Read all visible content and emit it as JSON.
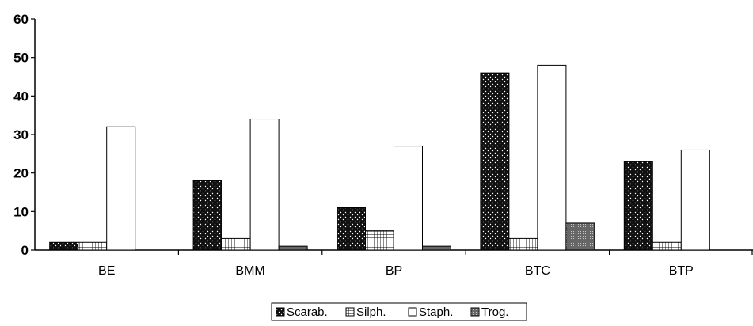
{
  "chart_data": {
    "type": "bar",
    "title": "",
    "xlabel": "",
    "ylabel": "",
    "categories": [
      "BE",
      "BMM",
      "BP",
      "BTC",
      "BTP"
    ],
    "series": [
      {
        "name": "Scarab.",
        "values": [
          2,
          18,
          11,
          46,
          23
        ],
        "pattern": "dots-dark"
      },
      {
        "name": "Silph.",
        "values": [
          2,
          3,
          5,
          3,
          2
        ],
        "pattern": "grid"
      },
      {
        "name": "Staph.",
        "values": [
          32,
          34,
          27,
          48,
          26
        ],
        "pattern": "white"
      },
      {
        "name": "Trog.",
        "values": [
          0,
          1,
          1,
          7,
          0
        ],
        "pattern": "dots-mid"
      }
    ],
    "ylim": [
      0,
      60
    ],
    "yticks": [
      "0",
      "10",
      "20",
      "30",
      "40",
      "50",
      "60"
    ],
    "grid": false,
    "legend_position": "bottom-center",
    "colors": {
      "axis": "#000000",
      "bar_stroke": "#000000",
      "dark_fill": "#111111",
      "mid_fill": "#555555",
      "white_fill": "#ffffff"
    }
  }
}
